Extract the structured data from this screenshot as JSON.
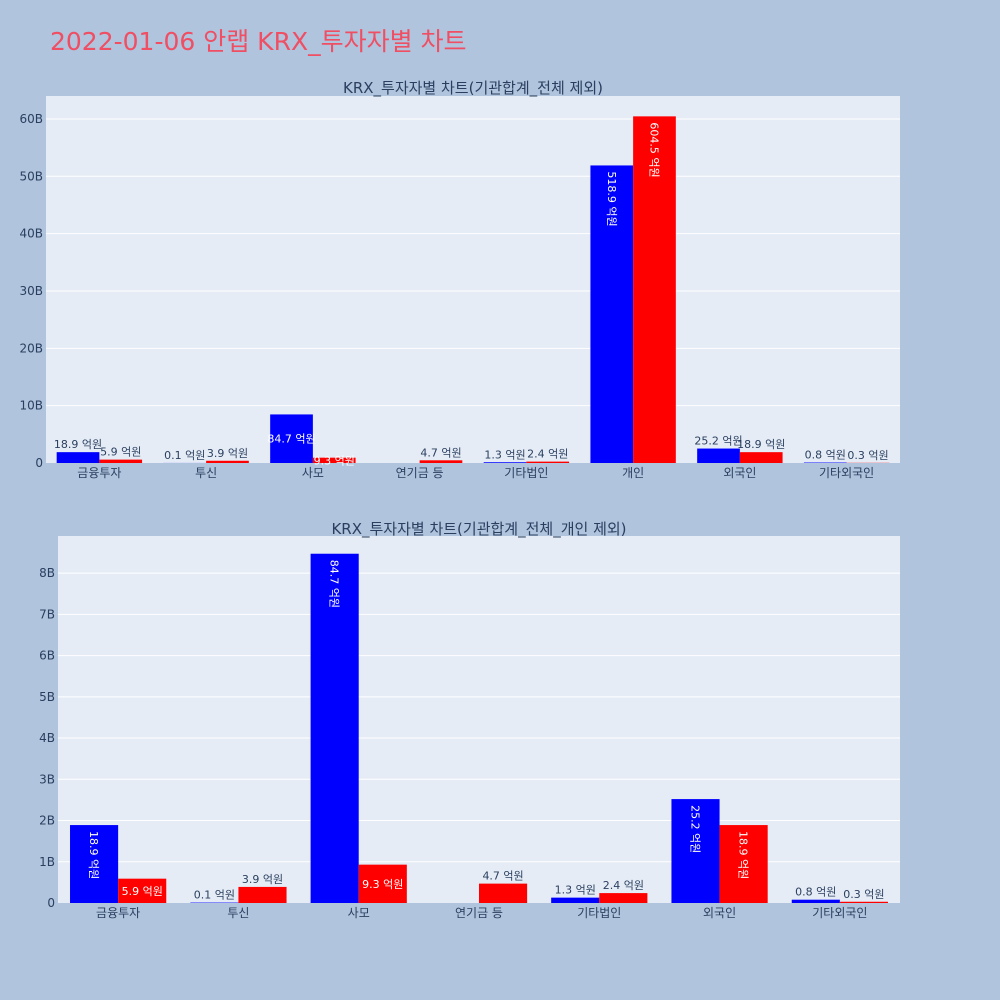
{
  "page": {
    "title": "2022-01-06 안랩 KRX_투자자별 차트"
  },
  "colors": {
    "buy": "#0000ff",
    "sell": "#ff0000",
    "plot_bg": "#e5ecf6",
    "paper_bg": "#b0c4de",
    "text": "#2a3f5f"
  },
  "chart_data": [
    {
      "type": "bar",
      "title": "KRX_투자자별 차트(기관합계_전체 제외)",
      "categories": [
        "금융투자",
        "투신",
        "사모",
        "연기금 등",
        "기타법인",
        "개인",
        "외국인",
        "기타외국인"
      ],
      "series": [
        {
          "color": "#0000ff",
          "values": [
            1.89,
            0.01,
            8.47,
            0,
            0.13,
            51.89,
            2.52,
            0.08
          ],
          "labels": [
            "18.9 억원",
            "0.1 억원",
            "84.7 억원",
            "",
            "1.3 억원",
            "518.9 억원",
            "25.2 억원",
            "0.8 억원"
          ]
        },
        {
          "color": "#ff0000",
          "values": [
            0.59,
            0.39,
            0.93,
            0.47,
            0.24,
            60.45,
            1.89,
            0.03
          ],
          "labels": [
            "5.9 억원",
            "3.9 억원",
            "9.3 억원",
            "4.7 억원",
            "2.4 억원",
            "604.5 억원",
            "18.9 억원",
            "0.3 억원"
          ]
        }
      ],
      "ylim": [
        0,
        64
      ],
      "yticks": [
        0,
        10,
        20,
        30,
        40,
        50,
        60
      ],
      "ytick_labels": [
        "0",
        "10B",
        "20B",
        "30B",
        "40B",
        "50B",
        "60B"
      ],
      "grid": true
    },
    {
      "type": "bar",
      "title": "KRX_투자자별 차트(기관합계_전체_개인 제외)",
      "categories": [
        "금융투자",
        "투신",
        "사모",
        "연기금 등",
        "기타법인",
        "외국인",
        "기타외국인"
      ],
      "series": [
        {
          "color": "#0000ff",
          "values": [
            1.89,
            0.01,
            8.47,
            0,
            0.13,
            2.52,
            0.08
          ],
          "labels": [
            "18.9 억원",
            "0.1 억원",
            "84.7 억원",
            "",
            "1.3 억원",
            "25.2 억원",
            "0.8 억원"
          ]
        },
        {
          "color": "#ff0000",
          "values": [
            0.59,
            0.39,
            0.93,
            0.47,
            0.24,
            1.89,
            0.03
          ],
          "labels": [
            "5.9 억원",
            "3.9 억원",
            "9.3 억원",
            "4.7 억원",
            "2.4 억원",
            "18.9 억원",
            "0.3 억원"
          ]
        }
      ],
      "ylim": [
        0,
        8.9
      ],
      "yticks": [
        0,
        1,
        2,
        3,
        4,
        5,
        6,
        7,
        8
      ],
      "ytick_labels": [
        "0",
        "1B",
        "2B",
        "3B",
        "4B",
        "5B",
        "6B",
        "7B",
        "8B"
      ],
      "grid": true
    }
  ]
}
